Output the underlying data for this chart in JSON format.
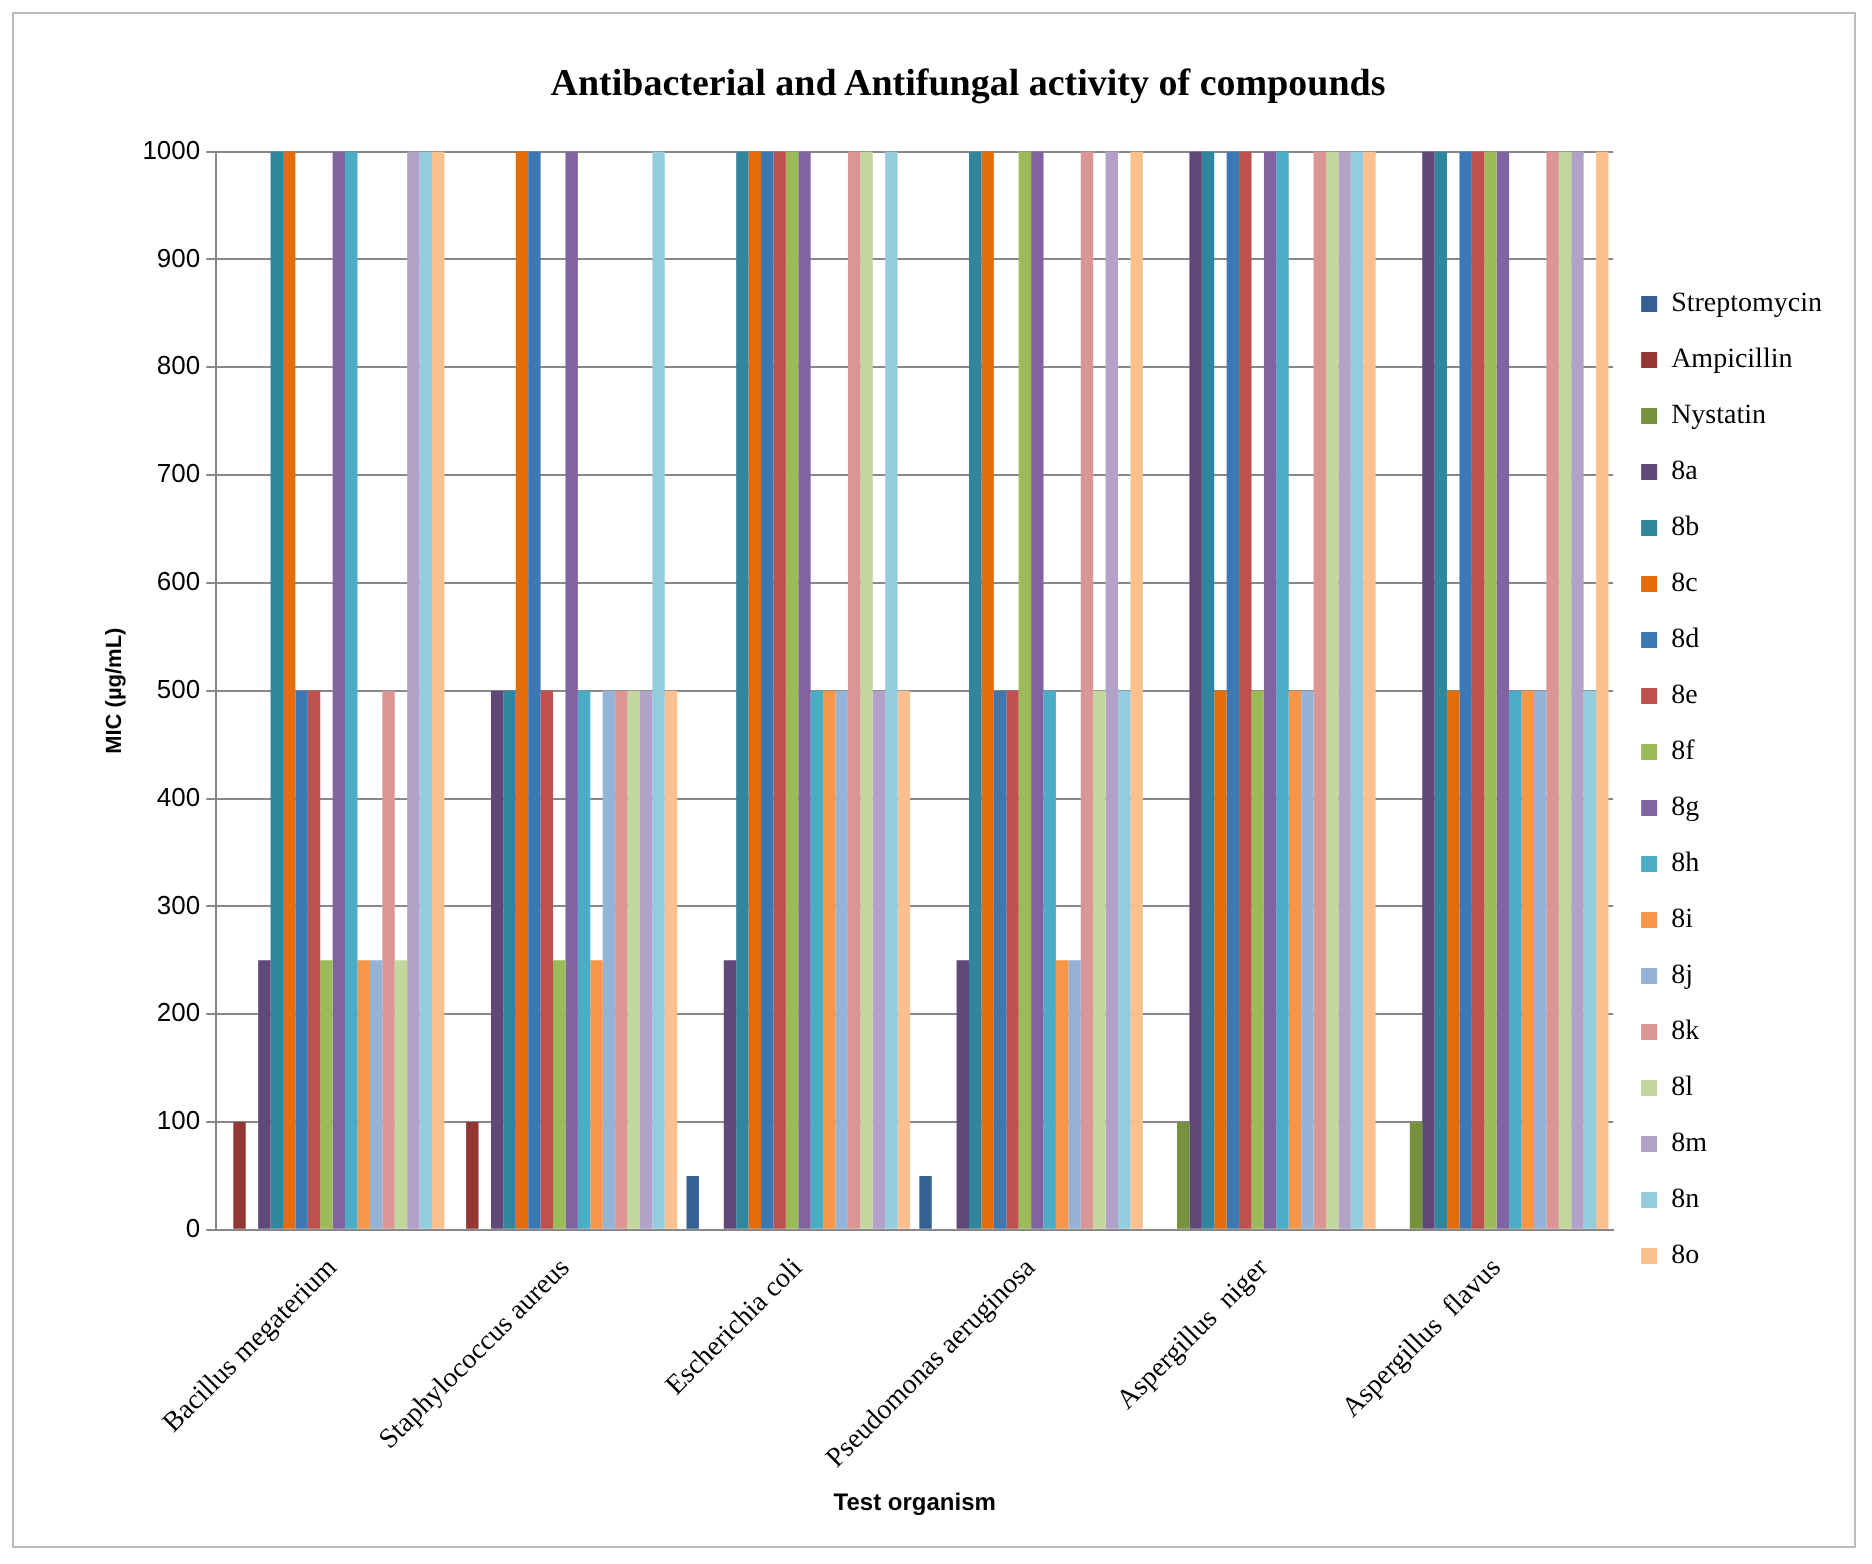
{
  "chart_data": {
    "type": "bar",
    "title": "Antibacterial and Antifungal activity of compounds",
    "xlabel": "Test organism",
    "ylabel": "MIC (µg/mL)",
    "categories": [
      "Bacillus megaterium",
      "Staphylococcus aureus",
      "Escherichia coli",
      "Pseudomonas aeruginosa",
      "Aspergillus  niger",
      "Aspergillus  flavus"
    ],
    "ylim": [
      0,
      1000
    ],
    "yticks": [
      0,
      100,
      200,
      300,
      400,
      500,
      600,
      700,
      800,
      900,
      1000
    ],
    "grid": "y",
    "legend": "right",
    "series": [
      {
        "name": "Streptomycin",
        "color": "#376092",
        "values": [
          0,
          0,
          50,
          50,
          0,
          0
        ]
      },
      {
        "name": "Ampicillin",
        "color": "#943634",
        "values": [
          100,
          100,
          0,
          0,
          0,
          0
        ]
      },
      {
        "name": "Nystatin",
        "color": "#76923c",
        "values": [
          0,
          0,
          0,
          0,
          100,
          100
        ]
      },
      {
        "name": "8a",
        "color": "#5f497a",
        "values": [
          250,
          500,
          250,
          250,
          1000,
          1000
        ]
      },
      {
        "name": "8b",
        "color": "#31859c",
        "values": [
          1000,
          500,
          1000,
          1000,
          1000,
          1000
        ]
      },
      {
        "name": "8c",
        "color": "#e46c0a",
        "values": [
          1000,
          1000,
          1000,
          1000,
          500,
          500
        ]
      },
      {
        "name": "8d",
        "color": "#3c78b4",
        "values": [
          500,
          1000,
          1000,
          500,
          1000,
          1000
        ]
      },
      {
        "name": "8e",
        "color": "#c0504d",
        "values": [
          500,
          500,
          1000,
          500,
          1000,
          1000
        ]
      },
      {
        "name": "8f",
        "color": "#9bbb59",
        "values": [
          250,
          250,
          1000,
          1000,
          500,
          1000
        ]
      },
      {
        "name": "8g",
        "color": "#8064a2",
        "values": [
          1000,
          1000,
          1000,
          1000,
          1000,
          1000
        ]
      },
      {
        "name": "8h",
        "color": "#4bacc6",
        "values": [
          1000,
          500,
          500,
          500,
          1000,
          500
        ]
      },
      {
        "name": "8i",
        "color": "#f79646",
        "values": [
          250,
          250,
          500,
          250,
          500,
          500
        ]
      },
      {
        "name": "8j",
        "color": "#95b3d7",
        "values": [
          250,
          500,
          500,
          250,
          500,
          500
        ]
      },
      {
        "name": "8k",
        "color": "#d99694",
        "values": [
          500,
          500,
          1000,
          1000,
          1000,
          1000
        ]
      },
      {
        "name": "8l",
        "color": "#c3d69b",
        "values": [
          250,
          500,
          1000,
          500,
          1000,
          1000
        ]
      },
      {
        "name": "8m",
        "color": "#b2a2c7",
        "values": [
          1000,
          500,
          500,
          1000,
          1000,
          1000
        ]
      },
      {
        "name": "8n",
        "color": "#93cddd",
        "values": [
          1000,
          1000,
          1000,
          500,
          1000,
          500
        ]
      },
      {
        "name": "8o",
        "color": "#fac090",
        "values": [
          1000,
          500,
          500,
          1000,
          1000,
          1000
        ]
      }
    ]
  }
}
